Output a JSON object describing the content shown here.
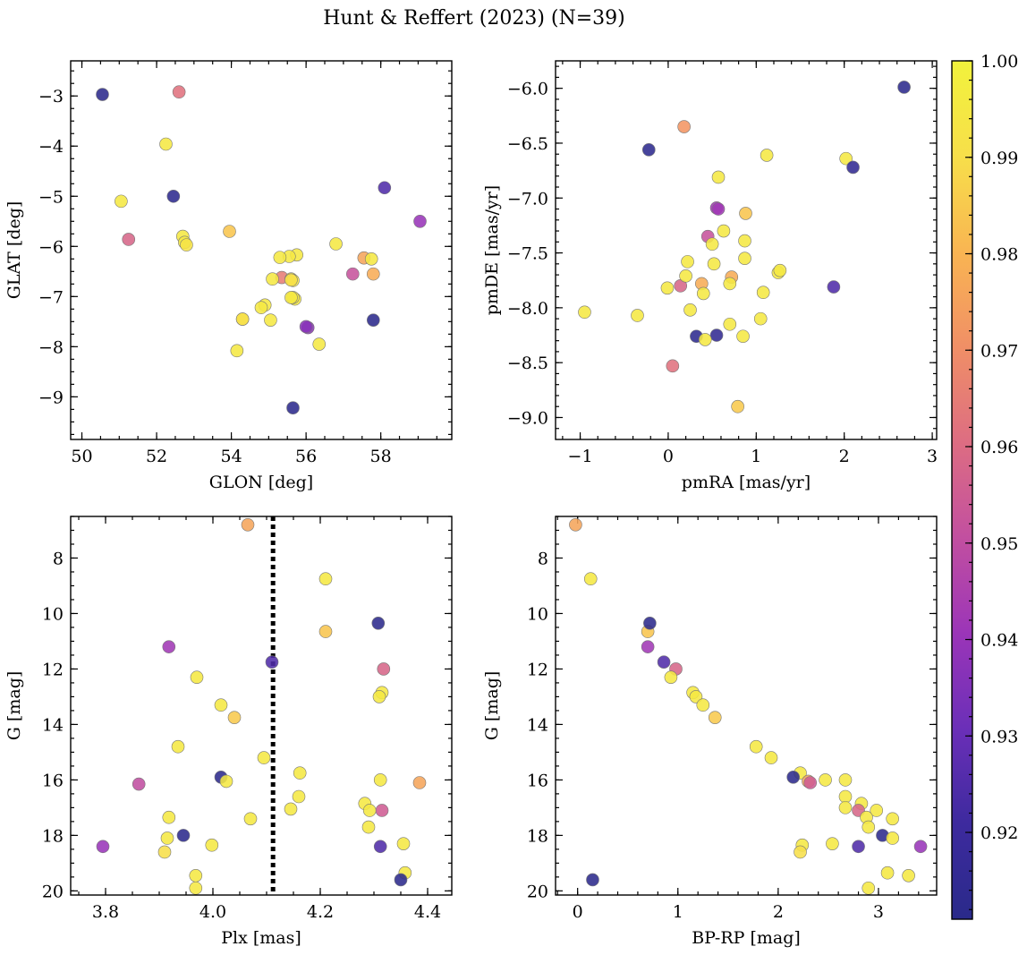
{
  "figure": {
    "title": "Hunt & Reffert (2023) (N=39)"
  },
  "chart_data": [
    {
      "type": "scatter",
      "id": "glon_glat",
      "xlabel": "GLON [deg]",
      "ylabel": "GLAT [deg]",
      "xlim": [
        49.7,
        59.9
      ],
      "ylim": [
        -9.85,
        -2.3
      ],
      "invert_y": false,
      "xticks": [
        50,
        52,
        54,
        56,
        58
      ],
      "yticks": [
        -9,
        -8,
        -7,
        -6,
        -5,
        -4,
        -3
      ],
      "minor_x": 0.5,
      "minor_y": 0.25,
      "x": [
        50.55,
        52.6,
        52.25,
        51.05,
        52.45,
        51.25,
        52.7,
        52.75,
        52.8,
        53.95,
        55.35,
        55.75,
        55.55,
        55.1,
        55.6,
        55.65,
        55.7,
        55.3,
        55.65,
        55.6,
        54.9,
        54.8,
        54.3,
        54.3,
        55.05,
        54.15,
        56.35,
        56.05,
        56.8,
        57.55,
        57.8,
        57.75,
        57.25,
        58.1,
        59.05,
        57.8,
        55.6,
        55.65,
        56.0
      ],
      "y": [
        -2.97,
        -2.92,
        -3.96,
        -5.1,
        -5.0,
        -5.86,
        -5.8,
        -5.92,
        -5.97,
        -5.7,
        -6.62,
        -6.17,
        -6.2,
        -6.65,
        -6.65,
        -6.68,
        -7.05,
        -6.22,
        -7.02,
        -7.02,
        -7.17,
        -7.22,
        -7.45,
        -7.45,
        -7.47,
        -8.08,
        -7.95,
        -7.62,
        -5.95,
        -6.23,
        -6.55,
        -6.25,
        -6.55,
        -4.83,
        -5.5,
        -7.47,
        -6.67,
        -9.22,
        -7.6
      ],
      "c": [
        0.912,
        0.962,
        0.995,
        0.995,
        0.913,
        0.958,
        0.995,
        0.995,
        0.992,
        0.984,
        0.965,
        0.995,
        0.995,
        0.995,
        0.995,
        0.995,
        0.995,
        0.995,
        0.995,
        0.995,
        0.995,
        0.995,
        0.993,
        0.99,
        0.995,
        0.995,
        0.995,
        0.937,
        0.995,
        0.976,
        0.978,
        0.995,
        0.952,
        0.925,
        0.94,
        0.912,
        0.99,
        0.912,
        0.937
      ]
    },
    {
      "type": "scatter",
      "id": "pm",
      "xlabel": "pmRA [mas/yr]",
      "ylabel": "pmDE [mas/yr]",
      "xlim": [
        -1.28,
        3.05
      ],
      "ylim": [
        -9.2,
        -5.75
      ],
      "invert_y": false,
      "xticks": [
        -1,
        0,
        1,
        2,
        3
      ],
      "yticks": [
        -9.0,
        -8.5,
        -8.0,
        -7.5,
        -7.0,
        -6.5,
        -6.0
      ],
      "ytick_labels": [
        "-9.0",
        "-8.5",
        "-8.0",
        "-7.5",
        "-7.0",
        "-6.5",
        "-6.0"
      ],
      "minor_x": 0.2,
      "minor_y": 0.1,
      "x": [
        2.68,
        -0.22,
        0.18,
        1.12,
        2.02,
        2.1,
        0.57,
        0.55,
        0.88,
        0.45,
        0.63,
        0.5,
        0.87,
        0.87,
        0.52,
        0.22,
        0.38,
        0.72,
        0.7,
        1.25,
        1.27,
        0.14,
        0.4,
        -0.01,
        1.08,
        0.25,
        0.7,
        1.05,
        -0.95,
        -0.35,
        0.32,
        0.55,
        0.42,
        0.85,
        1.88,
        0.05,
        0.79,
        0.2,
        0.57
      ],
      "y": [
        -5.99,
        -6.56,
        -6.35,
        -6.61,
        -6.64,
        -6.72,
        -6.81,
        -7.09,
        -7.14,
        -7.35,
        -7.3,
        -7.42,
        -7.39,
        -7.55,
        -7.6,
        -7.58,
        -7.78,
        -7.72,
        -7.78,
        -7.68,
        -7.66,
        -7.8,
        -7.87,
        -7.82,
        -7.86,
        -8.02,
        -8.15,
        -8.1,
        -8.04,
        -8.07,
        -8.26,
        -8.25,
        -8.29,
        -8.26,
        -7.81,
        -8.53,
        -8.9,
        -7.71,
        -7.1
      ],
      "c": [
        0.912,
        0.913,
        0.972,
        0.995,
        0.995,
        0.915,
        0.995,
        0.942,
        0.984,
        0.952,
        0.995,
        0.995,
        0.995,
        0.995,
        0.995,
        0.995,
        0.978,
        0.978,
        0.995,
        0.995,
        0.995,
        0.958,
        0.995,
        0.995,
        0.995,
        0.995,
        0.995,
        0.995,
        0.995,
        0.995,
        0.913,
        0.915,
        0.995,
        0.995,
        0.925,
        0.962,
        0.985,
        0.995,
        0.942
      ]
    },
    {
      "type": "scatter",
      "id": "plx_g",
      "xlabel": "Plx [mas]",
      "ylabel": "G [mag]",
      "xlim": [
        3.735,
        4.445
      ],
      "ylim": [
        20.15,
        6.5
      ],
      "invert_y": true,
      "xticks": [
        3.8,
        4.0,
        4.2,
        4.4
      ],
      "xtick_labels": [
        "3.8",
        "4.0",
        "4.2",
        "4.4"
      ],
      "yticks": [
        8,
        10,
        12,
        14,
        16,
        18,
        20
      ],
      "minor_x": 0.05,
      "minor_y": 0.5,
      "vline": 4.112,
      "x": [
        4.065,
        4.21,
        4.21,
        4.308,
        4.318,
        3.918,
        4.11,
        4.315,
        3.97,
        4.31,
        4.015,
        4.04,
        3.935,
        4.095,
        4.162,
        4.015,
        4.025,
        4.312,
        4.385,
        3.862,
        4.315,
        4.16,
        4.283,
        4.292,
        4.145,
        4.07,
        3.918,
        4.29,
        3.945,
        3.915,
        3.998,
        3.795,
        4.355,
        4.312,
        3.91,
        4.358,
        3.968,
        4.35,
        3.968
      ],
      "y": [
        6.8,
        8.75,
        10.65,
        10.35,
        12.0,
        11.2,
        11.75,
        12.85,
        12.3,
        13.0,
        13.3,
        13.75,
        14.8,
        15.2,
        15.75,
        15.9,
        16.05,
        16.0,
        16.1,
        16.15,
        17.1,
        16.6,
        16.85,
        17.1,
        17.05,
        17.4,
        17.35,
        17.7,
        18.0,
        18.1,
        18.35,
        18.4,
        18.3,
        18.4,
        18.6,
        19.35,
        19.45,
        19.6,
        19.9
      ],
      "c": [
        0.976,
        0.995,
        0.984,
        0.912,
        0.958,
        0.942,
        0.925,
        0.995,
        0.995,
        0.995,
        0.995,
        0.985,
        0.995,
        0.995,
        0.995,
        0.912,
        0.995,
        0.995,
        0.976,
        0.95,
        0.955,
        0.995,
        0.995,
        0.995,
        0.995,
        0.995,
        0.995,
        0.995,
        0.912,
        0.995,
        0.995,
        0.94,
        0.995,
        0.925,
        0.99,
        0.995,
        0.995,
        0.912,
        0.995
      ]
    },
    {
      "type": "scatter",
      "id": "bprp_g",
      "xlabel": "BP-RP [mag]",
      "ylabel": "G [mag]",
      "xlim": [
        -0.22,
        3.58
      ],
      "ylim": [
        20.15,
        6.5
      ],
      "invert_y": true,
      "xticks": [
        0,
        1,
        2,
        3
      ],
      "yticks": [
        8,
        10,
        12,
        14,
        16,
        18,
        20
      ],
      "minor_x": 0.2,
      "minor_y": 0.5,
      "x": [
        -0.02,
        0.13,
        0.7,
        0.72,
        0.7,
        0.86,
        0.98,
        0.93,
        1.15,
        1.18,
        1.25,
        1.37,
        1.78,
        1.93,
        2.22,
        2.15,
        2.3,
        2.32,
        2.47,
        2.67,
        2.67,
        2.67,
        2.83,
        2.98,
        2.8,
        2.88,
        3.14,
        2.9,
        3.04,
        3.14,
        2.8,
        2.24,
        2.22,
        2.54,
        3.42,
        3.09,
        3.3,
        2.9,
        0.15
      ],
      "y": [
        6.8,
        8.75,
        10.65,
        10.35,
        11.2,
        11.75,
        12.0,
        12.3,
        12.85,
        13.0,
        13.3,
        13.75,
        14.8,
        15.2,
        15.75,
        15.9,
        16.05,
        16.1,
        16.0,
        16.0,
        16.6,
        17.0,
        16.85,
        17.1,
        17.1,
        17.35,
        17.4,
        17.7,
        18.0,
        18.1,
        18.4,
        18.35,
        18.6,
        18.3,
        18.4,
        19.35,
        19.45,
        19.9,
        19.6
      ],
      "c": [
        0.976,
        0.995,
        0.984,
        0.912,
        0.942,
        0.925,
        0.958,
        0.995,
        0.995,
        0.995,
        0.995,
        0.985,
        0.995,
        0.995,
        0.995,
        0.912,
        0.976,
        0.955,
        0.995,
        0.995,
        0.995,
        0.995,
        0.995,
        0.995,
        0.958,
        0.995,
        0.995,
        0.995,
        0.912,
        0.995,
        0.925,
        0.995,
        0.99,
        0.995,
        0.94,
        0.995,
        0.995,
        0.995,
        0.912
      ]
    }
  ],
  "colorbar": {
    "cmap": "plasma",
    "range": [
      0.911,
      1.0
    ],
    "ticks": [
      0.92,
      0.93,
      0.94,
      0.95,
      0.96,
      0.97,
      0.98,
      0.99,
      1.0
    ],
    "tick_labels": [
      "0.92",
      "0.93",
      "0.94",
      "0.95",
      "0.96",
      "0.97",
      "0.98",
      "0.99",
      "1.00"
    ],
    "colors": [
      "#2a2a8a",
      "#3d2a9e",
      "#6b2fb8",
      "#9b35b8",
      "#c24fa0",
      "#dd6d82",
      "#f08f66",
      "#f9b552",
      "#f7df4a",
      "#f2f23c"
    ]
  }
}
